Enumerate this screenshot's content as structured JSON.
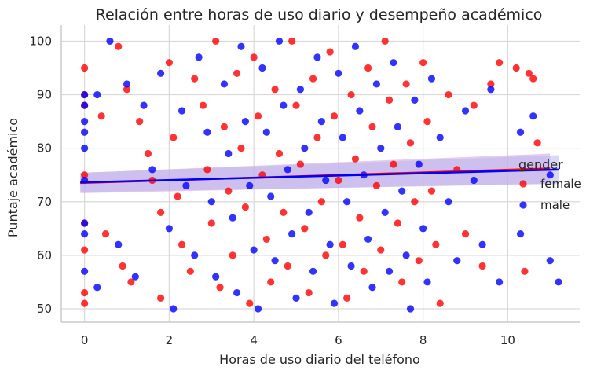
{
  "chart_data": {
    "type": "scatter",
    "title": "Relación entre horas de uso diario y desempeño académico",
    "xlabel": "Horas de uso diario del teléfono",
    "ylabel": "Puntaje académico",
    "xlim": [
      -0.55,
      11.7
    ],
    "ylim": [
      47.5,
      103
    ],
    "xticks": [
      0,
      2,
      4,
      6,
      8,
      10
    ],
    "yticks": [
      50,
      60,
      70,
      80,
      90,
      100
    ],
    "grid": true,
    "legend": {
      "title": "gender",
      "placement": "right"
    },
    "series": [
      {
        "name": "female",
        "color": "#ff0000",
        "points": [
          [
            0,
            95
          ],
          [
            0,
            90
          ],
          [
            0,
            88
          ],
          [
            0,
            75
          ],
          [
            0,
            66
          ],
          [
            0,
            61
          ],
          [
            0,
            53
          ],
          [
            0,
            51
          ],
          [
            0.4,
            86
          ],
          [
            0.5,
            64
          ],
          [
            0.8,
            99
          ],
          [
            0.9,
            58
          ],
          [
            1.0,
            91
          ],
          [
            1.1,
            55
          ],
          [
            1.3,
            85
          ],
          [
            1.5,
            79
          ],
          [
            1.6,
            74
          ],
          [
            1.8,
            68
          ],
          [
            1.8,
            52
          ],
          [
            2.0,
            96
          ],
          [
            2.1,
            82
          ],
          [
            2.2,
            71
          ],
          [
            2.3,
            62
          ],
          [
            2.5,
            57
          ],
          [
            2.6,
            93
          ],
          [
            2.8,
            88
          ],
          [
            2.9,
            76
          ],
          [
            3.0,
            66
          ],
          [
            3.1,
            100
          ],
          [
            3.2,
            54
          ],
          [
            3.3,
            84
          ],
          [
            3.4,
            72
          ],
          [
            3.5,
            60
          ],
          [
            3.6,
            94
          ],
          [
            3.7,
            80
          ],
          [
            3.8,
            69
          ],
          [
            3.9,
            51
          ],
          [
            4.0,
            97
          ],
          [
            4.1,
            86
          ],
          [
            4.2,
            75
          ],
          [
            4.3,
            63
          ],
          [
            4.4,
            55
          ],
          [
            4.5,
            91
          ],
          [
            4.6,
            79
          ],
          [
            4.7,
            68
          ],
          [
            4.8,
            58
          ],
          [
            4.9,
            100
          ],
          [
            5.0,
            88
          ],
          [
            5.1,
            77
          ],
          [
            5.2,
            65
          ],
          [
            5.3,
            53
          ],
          [
            5.4,
            93
          ],
          [
            5.5,
            82
          ],
          [
            5.6,
            70
          ],
          [
            5.7,
            60
          ],
          [
            5.8,
            98
          ],
          [
            5.9,
            86
          ],
          [
            6.0,
            74
          ],
          [
            6.1,
            62
          ],
          [
            6.2,
            52
          ],
          [
            6.3,
            90
          ],
          [
            6.4,
            78
          ],
          [
            6.5,
            67
          ],
          [
            6.6,
            57
          ],
          [
            6.7,
            95
          ],
          [
            6.8,
            84
          ],
          [
            6.9,
            73
          ],
          [
            7.0,
            61
          ],
          [
            7.1,
            100
          ],
          [
            7.2,
            89
          ],
          [
            7.3,
            77
          ],
          [
            7.4,
            66
          ],
          [
            7.5,
            55
          ],
          [
            7.6,
            92
          ],
          [
            7.7,
            81
          ],
          [
            7.8,
            70
          ],
          [
            7.9,
            59
          ],
          [
            8.0,
            96
          ],
          [
            8.1,
            85
          ],
          [
            8.2,
            72
          ],
          [
            8.3,
            62
          ],
          [
            8.4,
            51
          ],
          [
            8.6,
            90
          ],
          [
            8.8,
            76
          ],
          [
            9.0,
            64
          ],
          [
            9.2,
            88
          ],
          [
            9.4,
            58
          ],
          [
            9.6,
            92
          ],
          [
            9.8,
            96
          ],
          [
            10.2,
            95
          ],
          [
            10.4,
            57
          ],
          [
            10.5,
            94
          ],
          [
            10.6,
            93
          ],
          [
            10.7,
            81
          ]
        ]
      },
      {
        "name": "male",
        "color": "#0000ff",
        "points": [
          [
            0,
            90
          ],
          [
            0,
            88
          ],
          [
            0,
            85
          ],
          [
            0,
            83
          ],
          [
            0,
            80
          ],
          [
            0,
            74
          ],
          [
            0,
            66
          ],
          [
            0,
            64
          ],
          [
            0,
            57
          ],
          [
            0.3,
            90
          ],
          [
            0.3,
            54
          ],
          [
            0.6,
            100
          ],
          [
            0.8,
            62
          ],
          [
            1.0,
            92
          ],
          [
            1.2,
            56
          ],
          [
            1.4,
            88
          ],
          [
            1.6,
            76
          ],
          [
            1.8,
            94
          ],
          [
            2.0,
            65
          ],
          [
            2.1,
            50
          ],
          [
            2.3,
            87
          ],
          [
            2.4,
            73
          ],
          [
            2.6,
            60
          ],
          [
            2.7,
            97
          ],
          [
            2.9,
            83
          ],
          [
            3.0,
            70
          ],
          [
            3.1,
            56
          ],
          [
            3.3,
            92
          ],
          [
            3.4,
            79
          ],
          [
            3.5,
            67
          ],
          [
            3.6,
            53
          ],
          [
            3.7,
            99
          ],
          [
            3.8,
            85
          ],
          [
            3.9,
            73
          ],
          [
            4.0,
            61
          ],
          [
            4.1,
            50
          ],
          [
            4.2,
            95
          ],
          [
            4.3,
            83
          ],
          [
            4.4,
            71
          ],
          [
            4.5,
            59
          ],
          [
            4.6,
            100
          ],
          [
            4.7,
            88
          ],
          [
            4.8,
            76
          ],
          [
            4.9,
            64
          ],
          [
            5.0,
            52
          ],
          [
            5.1,
            91
          ],
          [
            5.2,
            80
          ],
          [
            5.3,
            68
          ],
          [
            5.4,
            57
          ],
          [
            5.5,
            97
          ],
          [
            5.6,
            85
          ],
          [
            5.7,
            74
          ],
          [
            5.8,
            62
          ],
          [
            5.9,
            51
          ],
          [
            6.0,
            94
          ],
          [
            6.1,
            82
          ],
          [
            6.2,
            70
          ],
          [
            6.3,
            58
          ],
          [
            6.4,
            99
          ],
          [
            6.5,
            87
          ],
          [
            6.6,
            75
          ],
          [
            6.7,
            63
          ],
          [
            6.8,
            54
          ],
          [
            6.9,
            92
          ],
          [
            7.0,
            80
          ],
          [
            7.1,
            68
          ],
          [
            7.2,
            57
          ],
          [
            7.3,
            96
          ],
          [
            7.4,
            84
          ],
          [
            7.5,
            72
          ],
          [
            7.6,
            60
          ],
          [
            7.7,
            50
          ],
          [
            7.8,
            89
          ],
          [
            7.9,
            77
          ],
          [
            8.0,
            65
          ],
          [
            8.1,
            55
          ],
          [
            8.2,
            93
          ],
          [
            8.4,
            82
          ],
          [
            8.6,
            70
          ],
          [
            8.8,
            59
          ],
          [
            9.0,
            87
          ],
          [
            9.2,
            74
          ],
          [
            9.4,
            62
          ],
          [
            9.6,
            91
          ],
          [
            9.8,
            55
          ],
          [
            10.3,
            83
          ],
          [
            10.3,
            64
          ],
          [
            10.6,
            86
          ],
          [
            11.0,
            75
          ],
          [
            11.0,
            59
          ],
          [
            11.2,
            55
          ]
        ]
      }
    ],
    "regression": [
      {
        "name": "female",
        "color": "#ff0000",
        "band_color": "#d4a0d8",
        "x": [
          -0.1,
          11.0
        ],
        "y": [
          73.5,
          76.2
        ],
        "ci": [
          [
            71.6,
            75.4
          ],
          [
            73.4,
            79.0
          ]
        ]
      },
      {
        "name": "male",
        "color": "#0000ff",
        "band_color": "#b8b8f0",
        "x": [
          -0.1,
          11.2
        ],
        "y": [
          73.6,
          76.0
        ],
        "ci": [
          [
            71.8,
            75.4
          ],
          [
            73.3,
            78.7
          ]
        ]
      }
    ]
  }
}
